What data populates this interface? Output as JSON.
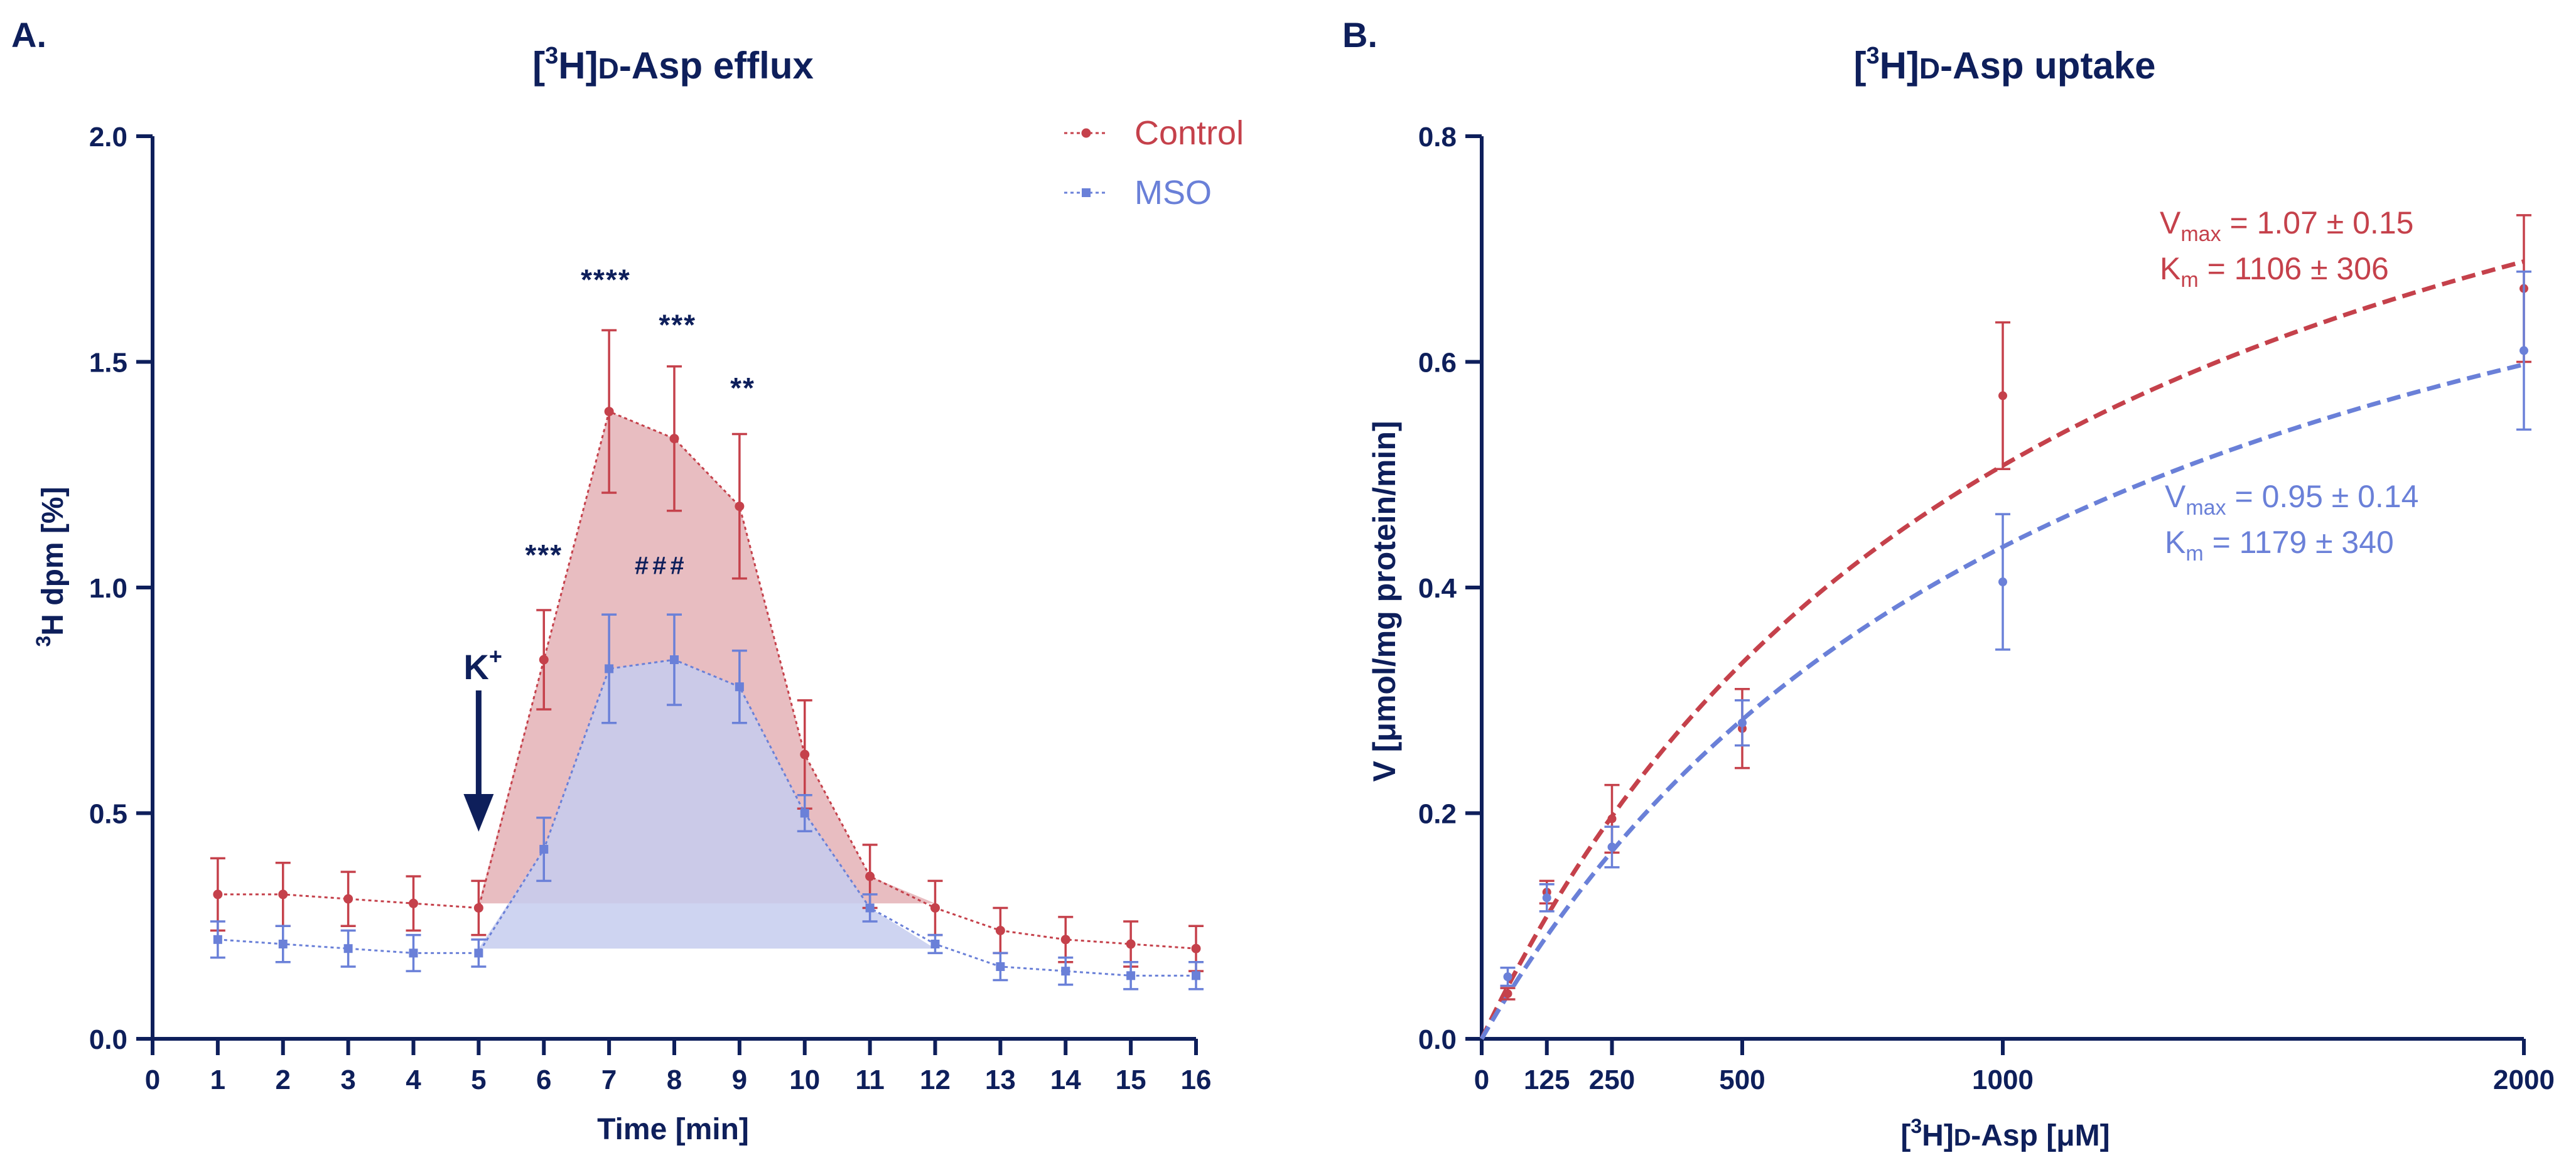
{
  "colors": {
    "axis": "#0e1f5b",
    "control": "#c5414b",
    "mso": "#6a80d8",
    "control_fill": "#e2adb1",
    "mso_fill": "#c5cdef"
  },
  "chart_data": [
    {
      "panel": "A.",
      "type": "line",
      "title": {
        "pre": "[",
        "sup": "3",
        "post": "H]",
        "sc": "D",
        "rest": "-Asp efflux"
      },
      "xlabel": "Time [min]",
      "ylabel": {
        "sup": "3",
        "rest": "H dpm [%]"
      },
      "xlim": [
        0,
        16
      ],
      "ylim": [
        0,
        2.0
      ],
      "xticks": [
        "0",
        "1",
        "2",
        "3",
        "4",
        "5",
        "6",
        "7",
        "8",
        "9",
        "10",
        "11",
        "12",
        "13",
        "14",
        "15",
        "16"
      ],
      "yticks": [
        "0.0",
        "0.5",
        "1.0",
        "1.5",
        "2.0"
      ],
      "legend_position": "top-right",
      "x": [
        1,
        2,
        3,
        4,
        5,
        6,
        7,
        8,
        9,
        10,
        11,
        12,
        13,
        14,
        15,
        16
      ],
      "series": [
        {
          "name": "Control",
          "color": "#c5414b",
          "marker": "circle",
          "values": [
            0.32,
            0.32,
            0.31,
            0.3,
            0.29,
            0.84,
            1.39,
            1.33,
            1.18,
            0.63,
            0.36,
            0.29,
            0.24,
            0.22,
            0.21,
            0.2
          ],
          "errors": [
            0.08,
            0.07,
            0.06,
            0.06,
            0.06,
            0.11,
            0.18,
            0.16,
            0.16,
            0.12,
            0.07,
            0.06,
            0.05,
            0.05,
            0.05,
            0.05
          ]
        },
        {
          "name": "MSO",
          "color": "#6a80d8",
          "marker": "square",
          "values": [
            0.22,
            0.21,
            0.2,
            0.19,
            0.19,
            0.42,
            0.82,
            0.84,
            0.78,
            0.5,
            0.29,
            0.21,
            0.16,
            0.15,
            0.14,
            0.14
          ],
          "errors": [
            0.04,
            0.04,
            0.04,
            0.04,
            0.03,
            0.07,
            0.12,
            0.1,
            0.08,
            0.04,
            0.03,
            0.02,
            0.03,
            0.03,
            0.03,
            0.03
          ]
        }
      ],
      "baselines": {
        "Control": 0.3,
        "MSO": 0.2
      },
      "stimulus": {
        "label": "K",
        "sup": "+",
        "x": 5
      },
      "annotations": [
        {
          "text": "***",
          "x": 6,
          "y": 1.05
        },
        {
          "text": "****",
          "x": 6.95,
          "y": 1.66
        },
        {
          "text": "***",
          "x": 8.05,
          "y": 1.56
        },
        {
          "text": "**",
          "x": 9.05,
          "y": 1.42
        },
        {
          "text": "###",
          "x": 7.8,
          "y": 1.03
        }
      ]
    },
    {
      "panel": "B.",
      "type": "line",
      "title": {
        "pre": "[",
        "sup": "3",
        "post": "H]",
        "sc": "D",
        "rest": "-Asp uptake"
      },
      "xlabel": {
        "pre": "[",
        "sup": "3",
        "post": "H]",
        "sc": "D",
        "rest": "-Asp [μM]"
      },
      "ylabel": "V [μmol/mg protein/min]",
      "xlim": [
        0,
        2000
      ],
      "ylim": [
        0,
        0.8
      ],
      "xtick_values": [
        0,
        125,
        250,
        500,
        1000,
        2000
      ],
      "xticks": [
        "0",
        "125",
        "250",
        "500",
        "1000",
        "2000"
      ],
      "yticks": [
        "0.0",
        "0.2",
        "0.4",
        "0.6",
        "0.8"
      ],
      "x": [
        50,
        125,
        250,
        500,
        1000,
        2000
      ],
      "series": [
        {
          "name": "Control",
          "color": "#c5414b",
          "values": [
            0.04,
            0.13,
            0.195,
            0.275,
            0.57,
            0.665
          ],
          "errors": [
            0.005,
            0.01,
            0.03,
            0.035,
            0.065,
            0.065
          ],
          "fit": {
            "vmax": 1.07,
            "km": 1106
          },
          "label_lines": [
            {
              "sym": "V",
              "sub": "max",
              "eq": " = 1.07 ± 0.15"
            },
            {
              "sym": "K",
              "sub": "m",
              "eq": " = 1106 ± 306"
            }
          ]
        },
        {
          "name": "MSO",
          "color": "#6a80d8",
          "values": [
            0.055,
            0.125,
            0.17,
            0.28,
            0.405,
            0.61
          ],
          "errors": [
            0.008,
            0.012,
            0.018,
            0.02,
            0.06,
            0.07
          ],
          "fit": {
            "vmax": 0.95,
            "km": 1179
          },
          "label_lines": [
            {
              "sym": "V",
              "sub": "max",
              "eq": " = 0.95 ± 0.14"
            },
            {
              "sym": "K",
              "sub": "m",
              "eq": " = 1179 ± 340"
            }
          ]
        }
      ]
    }
  ]
}
